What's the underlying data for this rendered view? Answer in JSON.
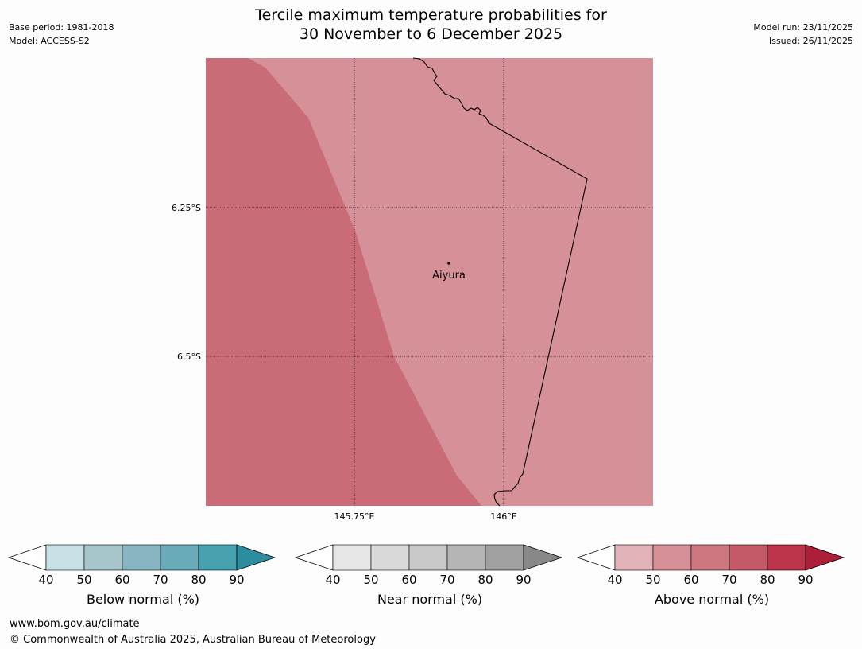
{
  "header": {
    "title_line1": "Tercile maximum temperature probabilities for",
    "title_line2": "30 November to 6 December 2025",
    "base_period": "Base period: 1981-2018",
    "model": "Model: ACCESS-S2",
    "model_run": "Model run: 23/11/2025",
    "issued": "Issued: 26/11/2025"
  },
  "map": {
    "lat_labels": [
      "6.25°S",
      "6.5°S"
    ],
    "lon_labels": [
      "145.75°E",
      "146°E"
    ],
    "place_name": "Aiyura",
    "colors": {
      "above_50_60": "#d69098",
      "above_60_70": "#ca6c77",
      "border": "#000000"
    }
  },
  "legends": [
    {
      "label": "Below normal (%)",
      "ticks": [
        "40",
        "50",
        "60",
        "70",
        "80",
        "90"
      ],
      "colors": [
        "#c8e1e6",
        "#a6c6cc",
        "#87b5c1",
        "#69abb8",
        "#46a0ae"
      ],
      "extend_color": "#2c8d9e"
    },
    {
      "label": "Near normal (%)",
      "ticks": [
        "40",
        "50",
        "60",
        "70",
        "80",
        "90"
      ],
      "colors": [
        "#e6e6e6",
        "#d9d9d9",
        "#c8c8c8",
        "#b5b5b5",
        "#a0a0a0"
      ],
      "extend_color": "#888888"
    },
    {
      "label": "Above normal (%)",
      "ticks": [
        "40",
        "50",
        "60",
        "70",
        "80",
        "90"
      ],
      "colors": [
        "#e2b4ba",
        "#d69098",
        "#cd7880",
        "#c45a68",
        "#bc344a"
      ],
      "extend_color": "#ad1f38"
    }
  ],
  "footer": {
    "website": "www.bom.gov.au/climate",
    "copyright": "© Commonwealth of Australia 2025, Australian Bureau of Meteorology"
  }
}
